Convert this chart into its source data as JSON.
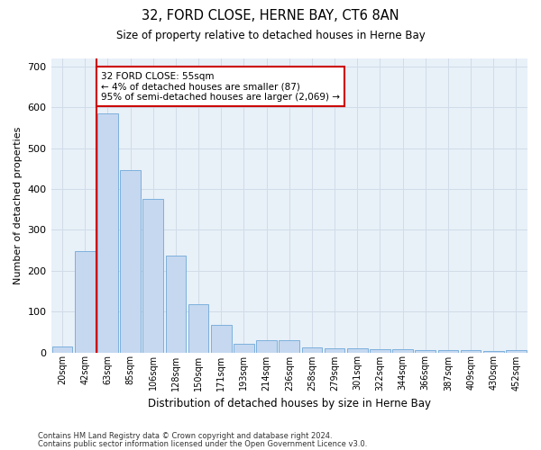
{
  "title1": "32, FORD CLOSE, HERNE BAY, CT6 8AN",
  "title2": "Size of property relative to detached houses in Herne Bay",
  "xlabel": "Distribution of detached houses by size in Herne Bay",
  "ylabel": "Number of detached properties",
  "categories": [
    "20sqm",
    "42sqm",
    "63sqm",
    "85sqm",
    "106sqm",
    "128sqm",
    "150sqm",
    "171sqm",
    "193sqm",
    "214sqm",
    "236sqm",
    "258sqm",
    "279sqm",
    "301sqm",
    "322sqm",
    "344sqm",
    "366sqm",
    "387sqm",
    "409sqm",
    "430sqm",
    "452sqm"
  ],
  "values": [
    15,
    248,
    585,
    447,
    375,
    237,
    119,
    67,
    22,
    30,
    30,
    12,
    10,
    10,
    8,
    8,
    6,
    5,
    5,
    3,
    6
  ],
  "bar_color": "#c5d8f0",
  "bar_edge_color": "#6fa8d8",
  "vline_x": 1.5,
  "vline_color": "#cc0000",
  "annotation_text": "32 FORD CLOSE: 55sqm\n← 4% of detached houses are smaller (87)\n95% of semi-detached houses are larger (2,069) →",
  "annotation_box_color": "#ffffff",
  "annotation_box_edge_color": "#cc0000",
  "grid_color": "#d0dce8",
  "background_color": "#e8f0f8",
  "ylim": [
    0,
    720
  ],
  "yticks": [
    0,
    100,
    200,
    300,
    400,
    500,
    600,
    700
  ],
  "footnote1": "Contains HM Land Registry data © Crown copyright and database right 2024.",
  "footnote2": "Contains public sector information licensed under the Open Government Licence v3.0."
}
